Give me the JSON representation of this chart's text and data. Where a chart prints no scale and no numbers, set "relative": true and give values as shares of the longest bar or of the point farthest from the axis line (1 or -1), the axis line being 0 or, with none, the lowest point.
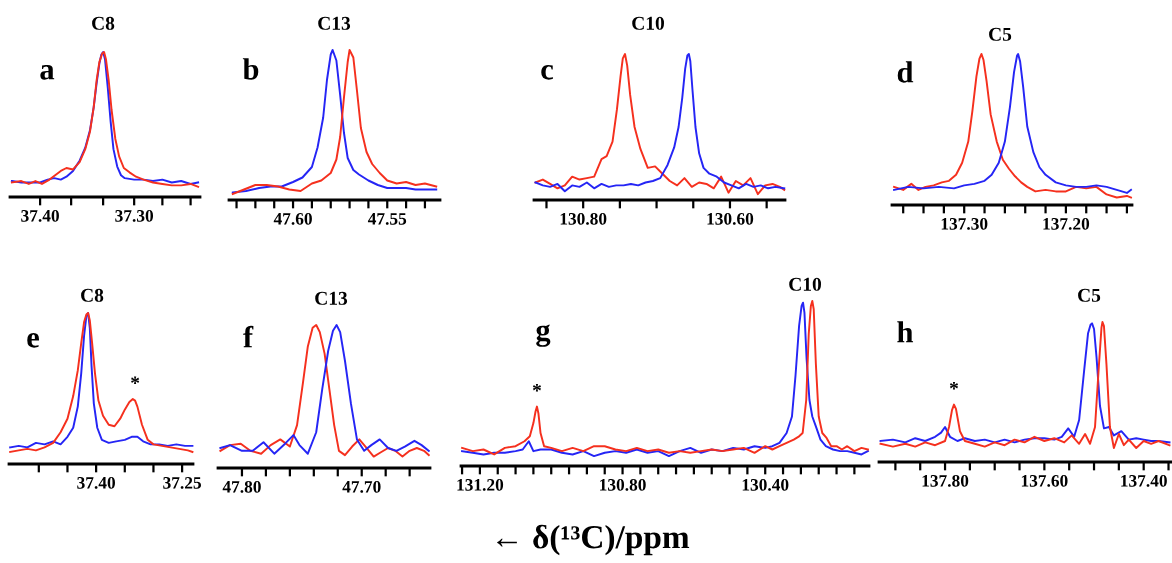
{
  "chart_data": [
    {
      "type": "line",
      "title": "C8",
      "relative": true,
      "tick_labels": "x",
      "grid": false,
      "annotations": [
        "a"
      ],
      "xlim": [
        37.432,
        37.23
      ],
      "xticks": [
        {
          "value": 37.4,
          "label": "37.40"
        },
        {
          "value": 37.367,
          "label": null
        },
        {
          "value": 37.333,
          "label": null
        },
        {
          "value": 37.3,
          "label": "37.30"
        },
        {
          "value": 37.27,
          "label": null
        },
        {
          "value": 37.24,
          "label": null
        }
      ],
      "series": [
        {
          "color": "#2525f5",
          "x": [
            37.43,
            37.42,
            37.41,
            37.4,
            37.392,
            37.385,
            37.378,
            37.372,
            37.365,
            37.358,
            37.352,
            37.347,
            37.343,
            37.34,
            37.337,
            37.335,
            37.333,
            37.331,
            37.328,
            37.325,
            37.322,
            37.318,
            37.314,
            37.31,
            37.3,
            37.29,
            37.28,
            37.27,
            37.26,
            37.25,
            37.24,
            37.232
          ],
          "values": [
            0.11,
            0.1,
            0.1,
            0.1,
            0.12,
            0.13,
            0.12,
            0.14,
            0.18,
            0.25,
            0.34,
            0.46,
            0.62,
            0.78,
            0.92,
            0.98,
            1.0,
            0.95,
            0.75,
            0.52,
            0.33,
            0.21,
            0.15,
            0.13,
            0.12,
            0.12,
            0.11,
            0.12,
            0.1,
            0.11,
            0.09,
            0.1
          ]
        },
        {
          "color": "#f5301e",
          "x": [
            37.43,
            37.42,
            37.412,
            37.405,
            37.398,
            37.39,
            37.384,
            37.378,
            37.372,
            37.365,
            37.358,
            37.352,
            37.347,
            37.343,
            37.34,
            37.337,
            37.334,
            37.332,
            37.33,
            37.327,
            37.324,
            37.32,
            37.316,
            37.311,
            37.305,
            37.298,
            37.29,
            37.28,
            37.27,
            37.26,
            37.25,
            37.24,
            37.232
          ],
          "values": [
            0.1,
            0.11,
            0.09,
            0.11,
            0.09,
            0.12,
            0.15,
            0.18,
            0.2,
            0.19,
            0.24,
            0.33,
            0.45,
            0.62,
            0.8,
            0.93,
            0.99,
            1.0,
            0.95,
            0.8,
            0.6,
            0.4,
            0.28,
            0.2,
            0.17,
            0.14,
            0.12,
            0.1,
            0.09,
            0.08,
            0.08,
            0.09,
            0.07
          ]
        }
      ]
    },
    {
      "type": "line",
      "title": "C13",
      "relative": true,
      "tick_labels": "x",
      "grid": false,
      "annotations": [
        "b"
      ],
      "xlim": [
        47.634,
        47.522
      ],
      "xticks": [
        {
          "value": 47.63,
          "label": null
        },
        {
          "value": 47.62,
          "label": null
        },
        {
          "value": 47.61,
          "label": null
        },
        {
          "value": 47.6,
          "label": "47.60"
        },
        {
          "value": 47.59,
          "label": null
        },
        {
          "value": 47.58,
          "label": null
        },
        {
          "value": 47.57,
          "label": null
        },
        {
          "value": 47.56,
          "label": null
        },
        {
          "value": 47.55,
          "label": "47.55"
        },
        {
          "value": 47.54,
          "label": null
        },
        {
          "value": 47.53,
          "label": null
        }
      ],
      "series": [
        {
          "color": "#2525f5",
          "x": [
            47.632,
            47.625,
            47.618,
            47.612,
            47.606,
            47.6,
            47.595,
            47.59,
            47.587,
            47.584,
            47.582,
            47.58,
            47.579,
            47.577,
            47.575,
            47.573,
            47.571,
            47.568,
            47.565,
            47.56,
            47.555,
            47.55,
            47.545,
            47.54,
            47.535,
            47.53,
            47.524
          ],
          "values": [
            0.05,
            0.06,
            0.08,
            0.09,
            0.09,
            0.12,
            0.15,
            0.22,
            0.35,
            0.55,
            0.8,
            0.97,
            1.0,
            0.93,
            0.7,
            0.45,
            0.28,
            0.2,
            0.17,
            0.13,
            0.1,
            0.08,
            0.08,
            0.08,
            0.07,
            0.07,
            0.07
          ]
        },
        {
          "color": "#f5301e",
          "x": [
            47.632,
            47.626,
            47.62,
            47.614,
            47.608,
            47.602,
            47.596,
            47.59,
            47.585,
            47.58,
            47.577,
            47.575,
            47.573,
            47.571,
            47.57,
            47.568,
            47.566,
            47.564,
            47.561,
            47.558,
            47.554,
            47.55,
            47.545,
            47.54,
            47.535,
            47.53,
            47.524
          ],
          "values": [
            0.04,
            0.07,
            0.1,
            0.1,
            0.09,
            0.07,
            0.06,
            0.11,
            0.13,
            0.18,
            0.27,
            0.42,
            0.68,
            0.92,
            1.0,
            0.95,
            0.72,
            0.48,
            0.32,
            0.24,
            0.18,
            0.13,
            0.11,
            0.12,
            0.1,
            0.11,
            0.09
          ]
        }
      ]
    },
    {
      "type": "line",
      "title": "C10",
      "relative": true,
      "tick_labels": "x",
      "grid": false,
      "annotations": [
        "c"
      ],
      "xlim": [
        130.867,
        130.525
      ],
      "xticks": [
        {
          "value": 130.85,
          "label": null
        },
        {
          "value": 130.8,
          "label": "130.80"
        },
        {
          "value": 130.75,
          "label": null
        },
        {
          "value": 130.7,
          "label": null
        },
        {
          "value": 130.65,
          "label": null
        },
        {
          "value": 130.6,
          "label": "130.60"
        },
        {
          "value": 130.55,
          "label": null
        }
      ],
      "series": [
        {
          "color": "#f5301e",
          "x": [
            130.865,
            130.855,
            130.845,
            130.835,
            130.825,
            130.815,
            130.805,
            130.795,
            130.785,
            130.775,
            130.768,
            130.76,
            130.754,
            130.749,
            130.746,
            130.743,
            130.74,
            130.736,
            130.73,
            130.722,
            130.712,
            130.702,
            130.692,
            130.682,
            130.672,
            130.662,
            130.652,
            130.642,
            130.632,
            130.622,
            130.612,
            130.602,
            130.592,
            130.582,
            130.572,
            130.562,
            130.552,
            130.542,
            130.532,
            130.526
          ],
          "values": [
            0.12,
            0.14,
            0.11,
            0.08,
            0.1,
            0.16,
            0.14,
            0.15,
            0.16,
            0.28,
            0.3,
            0.4,
            0.62,
            0.85,
            0.97,
            1.0,
            0.92,
            0.72,
            0.5,
            0.35,
            0.22,
            0.23,
            0.18,
            0.13,
            0.1,
            0.15,
            0.09,
            0.12,
            0.11,
            0.08,
            0.16,
            0.05,
            0.13,
            0.1,
            0.15,
            0.04,
            0.1,
            0.11,
            0.09,
            0.07
          ]
        },
        {
          "color": "#2525f5",
          "x": [
            130.865,
            130.855,
            130.845,
            130.835,
            130.825,
            130.815,
            130.805,
            130.795,
            130.785,
            130.775,
            130.765,
            130.755,
            130.745,
            130.735,
            130.725,
            130.715,
            130.705,
            130.695,
            130.685,
            130.676,
            130.67,
            130.665,
            130.661,
            130.658,
            130.656,
            130.654,
            130.651,
            130.647,
            130.642,
            130.636,
            130.628,
            130.618,
            130.608,
            130.598,
            130.588,
            130.578,
            130.568,
            130.558,
            130.548,
            130.538,
            130.526
          ],
          "values": [
            0.12,
            0.1,
            0.09,
            0.11,
            0.06,
            0.1,
            0.09,
            0.12,
            0.08,
            0.11,
            0.09,
            0.1,
            0.1,
            0.11,
            0.1,
            0.12,
            0.13,
            0.15,
            0.24,
            0.36,
            0.5,
            0.7,
            0.9,
            0.99,
            1.0,
            0.95,
            0.75,
            0.5,
            0.32,
            0.22,
            0.18,
            0.16,
            0.12,
            0.1,
            0.08,
            0.11,
            0.09,
            0.1,
            0.08,
            0.09,
            0.08
          ]
        }
      ]
    },
    {
      "type": "line",
      "title": "C5",
      "relative": true,
      "tick_labels": "x",
      "grid": false,
      "annotations": [
        "d"
      ],
      "xlim": [
        137.371,
        137.135
      ],
      "xticks": [
        {
          "value": 137.36,
          "label": null
        },
        {
          "value": 137.34,
          "label": null
        },
        {
          "value": 137.32,
          "label": null
        },
        {
          "value": 137.3,
          "label": "137.30"
        },
        {
          "value": 137.28,
          "label": null
        },
        {
          "value": 137.26,
          "label": null
        },
        {
          "value": 137.24,
          "label": null
        },
        {
          "value": 137.22,
          "label": null
        },
        {
          "value": 137.2,
          "label": "137.20"
        },
        {
          "value": 137.18,
          "label": null
        },
        {
          "value": 137.16,
          "label": null
        },
        {
          "value": 137.14,
          "label": null
        }
      ],
      "series": [
        {
          "color": "#f5301e",
          "x": [
            137.369,
            137.36,
            137.352,
            137.345,
            137.338,
            137.33,
            137.322,
            137.315,
            137.308,
            137.302,
            137.296,
            137.292,
            137.288,
            137.285,
            137.283,
            137.281,
            137.278,
            137.274,
            137.268,
            137.262,
            137.256,
            137.25,
            137.244,
            137.238,
            137.23,
            137.22,
            137.21,
            137.2,
            137.19,
            137.18,
            137.17,
            137.16,
            137.15,
            137.14,
            137.136
          ],
          "values": [
            0.12,
            0.1,
            0.14,
            0.1,
            0.12,
            0.13,
            0.15,
            0.16,
            0.2,
            0.28,
            0.42,
            0.62,
            0.85,
            0.97,
            1.0,
            0.96,
            0.82,
            0.6,
            0.42,
            0.3,
            0.24,
            0.19,
            0.15,
            0.12,
            0.09,
            0.1,
            0.09,
            0.09,
            0.12,
            0.11,
            0.12,
            0.07,
            0.05,
            0.06,
            0.05
          ]
        },
        {
          "color": "#2525f5",
          "x": [
            137.369,
            137.355,
            137.34,
            137.325,
            137.31,
            137.3,
            137.29,
            137.28,
            137.273,
            137.266,
            137.26,
            137.255,
            137.251,
            137.248,
            137.247,
            137.245,
            137.242,
            137.238,
            137.232,
            137.226,
            137.22,
            137.21,
            137.2,
            137.19,
            137.18,
            137.17,
            137.16,
            137.15,
            137.14,
            137.136
          ],
          "values": [
            0.1,
            0.12,
            0.11,
            0.12,
            0.11,
            0.13,
            0.14,
            0.16,
            0.2,
            0.28,
            0.42,
            0.65,
            0.88,
            0.99,
            1.0,
            0.95,
            0.78,
            0.52,
            0.35,
            0.25,
            0.2,
            0.15,
            0.13,
            0.12,
            0.12,
            0.13,
            0.12,
            0.1,
            0.08,
            0.1
          ]
        }
      ]
    },
    {
      "type": "line",
      "title": "C8",
      "relative": true,
      "tick_labels": "x",
      "grid": false,
      "annotations": [
        "e",
        {
          "text": "*",
          "x": 37.332,
          "y": 0.43
        }
      ],
      "xlim": [
        37.552,
        37.231
      ],
      "xticks": [
        {
          "value": 37.5,
          "label": null
        },
        {
          "value": 37.45,
          "label": null
        },
        {
          "value": 37.4,
          "label": "37.40"
        },
        {
          "value": 37.35,
          "label": null
        },
        {
          "value": 37.3,
          "label": null
        },
        {
          "value": 37.25,
          "label": "37.25"
        }
      ],
      "series": [
        {
          "color": "#2525f5",
          "x": [
            37.55,
            37.535,
            37.52,
            37.505,
            37.49,
            37.475,
            37.462,
            37.45,
            37.44,
            37.432,
            37.426,
            37.421,
            37.417,
            37.414,
            37.411,
            37.408,
            37.404,
            37.398,
            37.39,
            37.378,
            37.365,
            37.35,
            37.338,
            37.328,
            37.318,
            37.305,
            37.29,
            37.275,
            37.26,
            37.245,
            37.232
          ],
          "values": [
            0.11,
            0.12,
            0.11,
            0.14,
            0.13,
            0.15,
            0.13,
            0.18,
            0.24,
            0.38,
            0.6,
            0.85,
            0.98,
            1.0,
            0.9,
            0.65,
            0.4,
            0.24,
            0.16,
            0.14,
            0.15,
            0.16,
            0.18,
            0.18,
            0.15,
            0.13,
            0.13,
            0.12,
            0.13,
            0.12,
            0.12
          ]
        },
        {
          "color": "#f5301e",
          "x": [
            37.55,
            37.535,
            37.52,
            37.505,
            37.49,
            37.475,
            37.462,
            37.45,
            37.44,
            37.432,
            37.426,
            37.421,
            37.417,
            37.414,
            37.411,
            37.407,
            37.402,
            37.396,
            37.388,
            37.378,
            37.368,
            37.358,
            37.35,
            37.342,
            37.336,
            37.332,
            37.328,
            37.32,
            37.31,
            37.3,
            37.285,
            37.27,
            37.255,
            37.24,
            37.232
          ],
          "values": [
            0.08,
            0.09,
            0.1,
            0.09,
            0.11,
            0.14,
            0.21,
            0.3,
            0.45,
            0.62,
            0.8,
            0.94,
            0.99,
            1.0,
            0.95,
            0.8,
            0.6,
            0.42,
            0.32,
            0.26,
            0.25,
            0.3,
            0.36,
            0.41,
            0.43,
            0.42,
            0.38,
            0.26,
            0.16,
            0.13,
            0.12,
            0.11,
            0.1,
            0.09,
            0.08
          ]
        }
      ]
    },
    {
      "type": "line",
      "title": "C13",
      "relative": true,
      "tick_labels": "x",
      "grid": false,
      "annotations": [
        "f"
      ],
      "xlim": [
        47.82,
        47.643
      ],
      "xticks": [
        {
          "value": 47.8,
          "label": "47.80"
        },
        {
          "value": 47.78,
          "label": null
        },
        {
          "value": 47.76,
          "label": null
        },
        {
          "value": 47.74,
          "label": null
        },
        {
          "value": 47.72,
          "label": null
        },
        {
          "value": 47.7,
          "label": "47.70"
        },
        {
          "value": 47.68,
          "label": null
        },
        {
          "value": 47.66,
          "label": null
        }
      ],
      "series": [
        {
          "color": "#f5301e",
          "x": [
            47.818,
            47.81,
            47.801,
            47.793,
            47.784,
            47.776,
            47.768,
            47.76,
            47.754,
            47.749,
            47.745,
            47.741,
            47.738,
            47.735,
            47.731,
            47.727,
            47.723,
            47.719,
            47.714,
            47.708,
            47.702,
            47.696,
            47.69,
            47.684,
            47.678,
            47.672,
            47.666,
            47.66,
            47.654,
            47.648,
            47.644
          ],
          "values": [
            0.12,
            0.16,
            0.17,
            0.12,
            0.1,
            0.16,
            0.2,
            0.15,
            0.3,
            0.6,
            0.85,
            0.98,
            1.0,
            0.95,
            0.8,
            0.55,
            0.3,
            0.12,
            0.09,
            0.15,
            0.2,
            0.14,
            0.08,
            0.11,
            0.14,
            0.12,
            0.08,
            0.12,
            0.14,
            0.12,
            0.09
          ]
        },
        {
          "color": "#2525f5",
          "x": [
            47.818,
            47.81,
            47.8,
            47.791,
            47.782,
            47.773,
            47.764,
            47.757,
            47.752,
            47.745,
            47.738,
            47.733,
            47.728,
            47.724,
            47.721,
            47.718,
            47.714,
            47.709,
            47.704,
            47.698,
            47.692,
            47.685,
            47.678,
            47.671,
            47.664,
            47.656,
            47.65,
            47.644
          ],
          "values": [
            0.14,
            0.16,
            0.12,
            0.12,
            0.18,
            0.1,
            0.17,
            0.23,
            0.16,
            0.1,
            0.25,
            0.55,
            0.82,
            0.96,
            1.0,
            0.95,
            0.75,
            0.45,
            0.2,
            0.12,
            0.16,
            0.2,
            0.14,
            0.12,
            0.15,
            0.19,
            0.16,
            0.12
          ]
        }
      ]
    },
    {
      "type": "line",
      "title": "C10",
      "xlabel": "← δ(¹³C)/ppm",
      "relative": true,
      "tick_labels": "x",
      "grid": false,
      "annotations": [
        "g",
        {
          "text": "*",
          "x": 131.04,
          "y": 0.36
        }
      ],
      "xlim": [
        131.253,
        130.109
      ],
      "xticks": [
        {
          "value": 131.25,
          "label": null
        },
        {
          "value": 131.2,
          "label": "131.20"
        },
        {
          "value": 131.15,
          "label": null
        },
        {
          "value": 131.1,
          "label": null
        },
        {
          "value": 131.05,
          "label": null
        },
        {
          "value": 131.0,
          "label": null
        },
        {
          "value": 130.95,
          "label": null
        },
        {
          "value": 130.9,
          "label": null
        },
        {
          "value": 130.85,
          "label": null
        },
        {
          "value": 130.8,
          "label": "130.80"
        },
        {
          "value": 130.75,
          "label": null
        },
        {
          "value": 130.7,
          "label": null
        },
        {
          "value": 130.65,
          "label": null
        },
        {
          "value": 130.6,
          "label": null
        },
        {
          "value": 130.55,
          "label": null
        },
        {
          "value": 130.5,
          "label": null
        },
        {
          "value": 130.45,
          "label": null
        },
        {
          "value": 130.4,
          "label": "130.40"
        },
        {
          "value": 130.35,
          "label": null
        },
        {
          "value": 130.3,
          "label": null
        },
        {
          "value": 130.25,
          "label": null
        },
        {
          "value": 130.2,
          "label": null
        },
        {
          "value": 130.15,
          "label": null
        }
      ],
      "series": [
        {
          "color": "#2525f5",
          "x": [
            131.25,
            131.22,
            131.19,
            131.16,
            131.13,
            131.1,
            131.08,
            131.063,
            131.05,
            131.03,
            131.0,
            130.97,
            130.94,
            130.91,
            130.88,
            130.85,
            130.82,
            130.79,
            130.76,
            130.73,
            130.7,
            130.67,
            130.64,
            130.61,
            130.58,
            130.55,
            130.52,
            130.49,
            130.46,
            130.43,
            130.4,
            130.38,
            130.36,
            130.34,
            130.325,
            130.315,
            130.305,
            130.298,
            130.294,
            130.29,
            130.284,
            130.276,
            130.268,
            130.258,
            130.245,
            130.23,
            130.21,
            130.19,
            130.17,
            130.15,
            130.13,
            130.112
          ],
          "values": [
            0.09,
            0.08,
            0.07,
            0.08,
            0.08,
            0.09,
            0.1,
            0.15,
            0.09,
            0.1,
            0.1,
            0.08,
            0.07,
            0.09,
            0.06,
            0.08,
            0.09,
            0.08,
            0.1,
            0.08,
            0.09,
            0.06,
            0.09,
            0.11,
            0.08,
            0.1,
            0.09,
            0.11,
            0.1,
            0.12,
            0.11,
            0.12,
            0.14,
            0.2,
            0.3,
            0.55,
            0.85,
            0.97,
            0.99,
            0.93,
            0.65,
            0.4,
            0.3,
            0.24,
            0.16,
            0.12,
            0.1,
            0.09,
            0.09,
            0.08,
            0.07,
            0.09
          ]
        },
        {
          "color": "#f5301e",
          "x": [
            131.25,
            131.22,
            131.19,
            131.16,
            131.13,
            131.1,
            131.075,
            131.06,
            131.05,
            131.044,
            131.04,
            131.036,
            131.03,
            131.02,
            131.0,
            130.97,
            130.94,
            130.91,
            130.88,
            130.85,
            130.82,
            130.79,
            130.76,
            130.73,
            130.7,
            130.67,
            130.64,
            130.61,
            130.58,
            130.55,
            130.52,
            130.49,
            130.46,
            130.43,
            130.4,
            130.38,
            130.36,
            130.34,
            130.32,
            130.305,
            130.295,
            130.285,
            130.278,
            130.272,
            130.268,
            130.264,
            130.258,
            130.25,
            130.24,
            130.228,
            130.215,
            130.2,
            130.185,
            130.17,
            130.15,
            130.13,
            130.112
          ],
          "values": [
            0.11,
            0.09,
            0.1,
            0.07,
            0.11,
            0.12,
            0.15,
            0.18,
            0.26,
            0.33,
            0.36,
            0.32,
            0.2,
            0.12,
            0.11,
            0.09,
            0.11,
            0.09,
            0.12,
            0.12,
            0.1,
            0.09,
            0.11,
            0.09,
            0.1,
            0.08,
            0.09,
            0.08,
            0.09,
            0.1,
            0.09,
            0.1,
            0.11,
            0.08,
            0.12,
            0.1,
            0.12,
            0.14,
            0.16,
            0.18,
            0.2,
            0.4,
            0.8,
            0.97,
            1.0,
            0.95,
            0.62,
            0.3,
            0.2,
            0.17,
            0.12,
            0.12,
            0.1,
            0.12,
            0.09,
            0.11,
            0.1
          ]
        }
      ]
    },
    {
      "type": "line",
      "title": "C5",
      "relative": true,
      "tick_labels": "x",
      "grid": false,
      "annotations": [
        "h",
        {
          "text": "*",
          "x": 137.782,
          "y": 0.41
        }
      ],
      "xlim": [
        137.933,
        137.345
      ],
      "xticks": [
        {
          "value": 137.9,
          "label": null
        },
        {
          "value": 137.85,
          "label": null
        },
        {
          "value": 137.8,
          "label": "137.80"
        },
        {
          "value": 137.75,
          "label": null
        },
        {
          "value": 137.7,
          "label": null
        },
        {
          "value": 137.65,
          "label": null
        },
        {
          "value": 137.6,
          "label": "137.60"
        },
        {
          "value": 137.55,
          "label": null
        },
        {
          "value": 137.5,
          "label": null
        },
        {
          "value": 137.45,
          "label": null
        },
        {
          "value": 137.4,
          "label": "137.40"
        },
        {
          "value": 137.35,
          "label": null
        }
      ],
      "series": [
        {
          "color": "#2525f5",
          "x": [
            137.93,
            137.905,
            137.88,
            137.86,
            137.84,
            137.82,
            137.808,
            137.8,
            137.79,
            137.775,
            137.76,
            137.74,
            137.72,
            137.7,
            137.68,
            137.66,
            137.64,
            137.62,
            137.6,
            137.58,
            137.565,
            137.552,
            137.54,
            137.53,
            137.52,
            137.512,
            137.507,
            137.504,
            137.5,
            137.495,
            137.488,
            137.48,
            137.47,
            137.46,
            137.445,
            137.43,
            137.415,
            137.4,
            137.385,
            137.37,
            137.348
          ],
          "values": [
            0.15,
            0.16,
            0.14,
            0.17,
            0.15,
            0.18,
            0.21,
            0.25,
            0.18,
            0.15,
            0.17,
            0.15,
            0.16,
            0.14,
            0.16,
            0.14,
            0.16,
            0.17,
            0.17,
            0.16,
            0.18,
            0.24,
            0.18,
            0.3,
            0.65,
            0.92,
            0.98,
            0.99,
            0.95,
            0.75,
            0.4,
            0.24,
            0.25,
            0.19,
            0.22,
            0.16,
            0.17,
            0.16,
            0.15,
            0.15,
            0.14
          ]
        },
        {
          "color": "#f5301e",
          "x": [
            137.93,
            137.905,
            137.88,
            137.86,
            137.84,
            137.82,
            137.8,
            137.792,
            137.786,
            137.782,
            137.778,
            137.77,
            137.76,
            137.74,
            137.72,
            137.7,
            137.68,
            137.66,
            137.64,
            137.62,
            137.6,
            137.58,
            137.56,
            137.545,
            137.53,
            137.518,
            137.508,
            137.498,
            137.49,
            137.485,
            137.483,
            137.48,
            137.475,
            137.468,
            137.46,
            137.45,
            137.44,
            137.43,
            137.415,
            137.4,
            137.385,
            137.37,
            137.348
          ],
          "values": [
            0.13,
            0.11,
            0.13,
            0.11,
            0.14,
            0.12,
            0.15,
            0.25,
            0.37,
            0.41,
            0.38,
            0.22,
            0.15,
            0.13,
            0.11,
            0.14,
            0.12,
            0.16,
            0.14,
            0.18,
            0.15,
            0.17,
            0.14,
            0.19,
            0.13,
            0.2,
            0.13,
            0.25,
            0.7,
            0.96,
            1.0,
            0.97,
            0.7,
            0.25,
            0.1,
            0.2,
            0.12,
            0.16,
            0.1,
            0.15,
            0.13,
            0.15,
            0.12
          ]
        }
      ]
    }
  ]
}
